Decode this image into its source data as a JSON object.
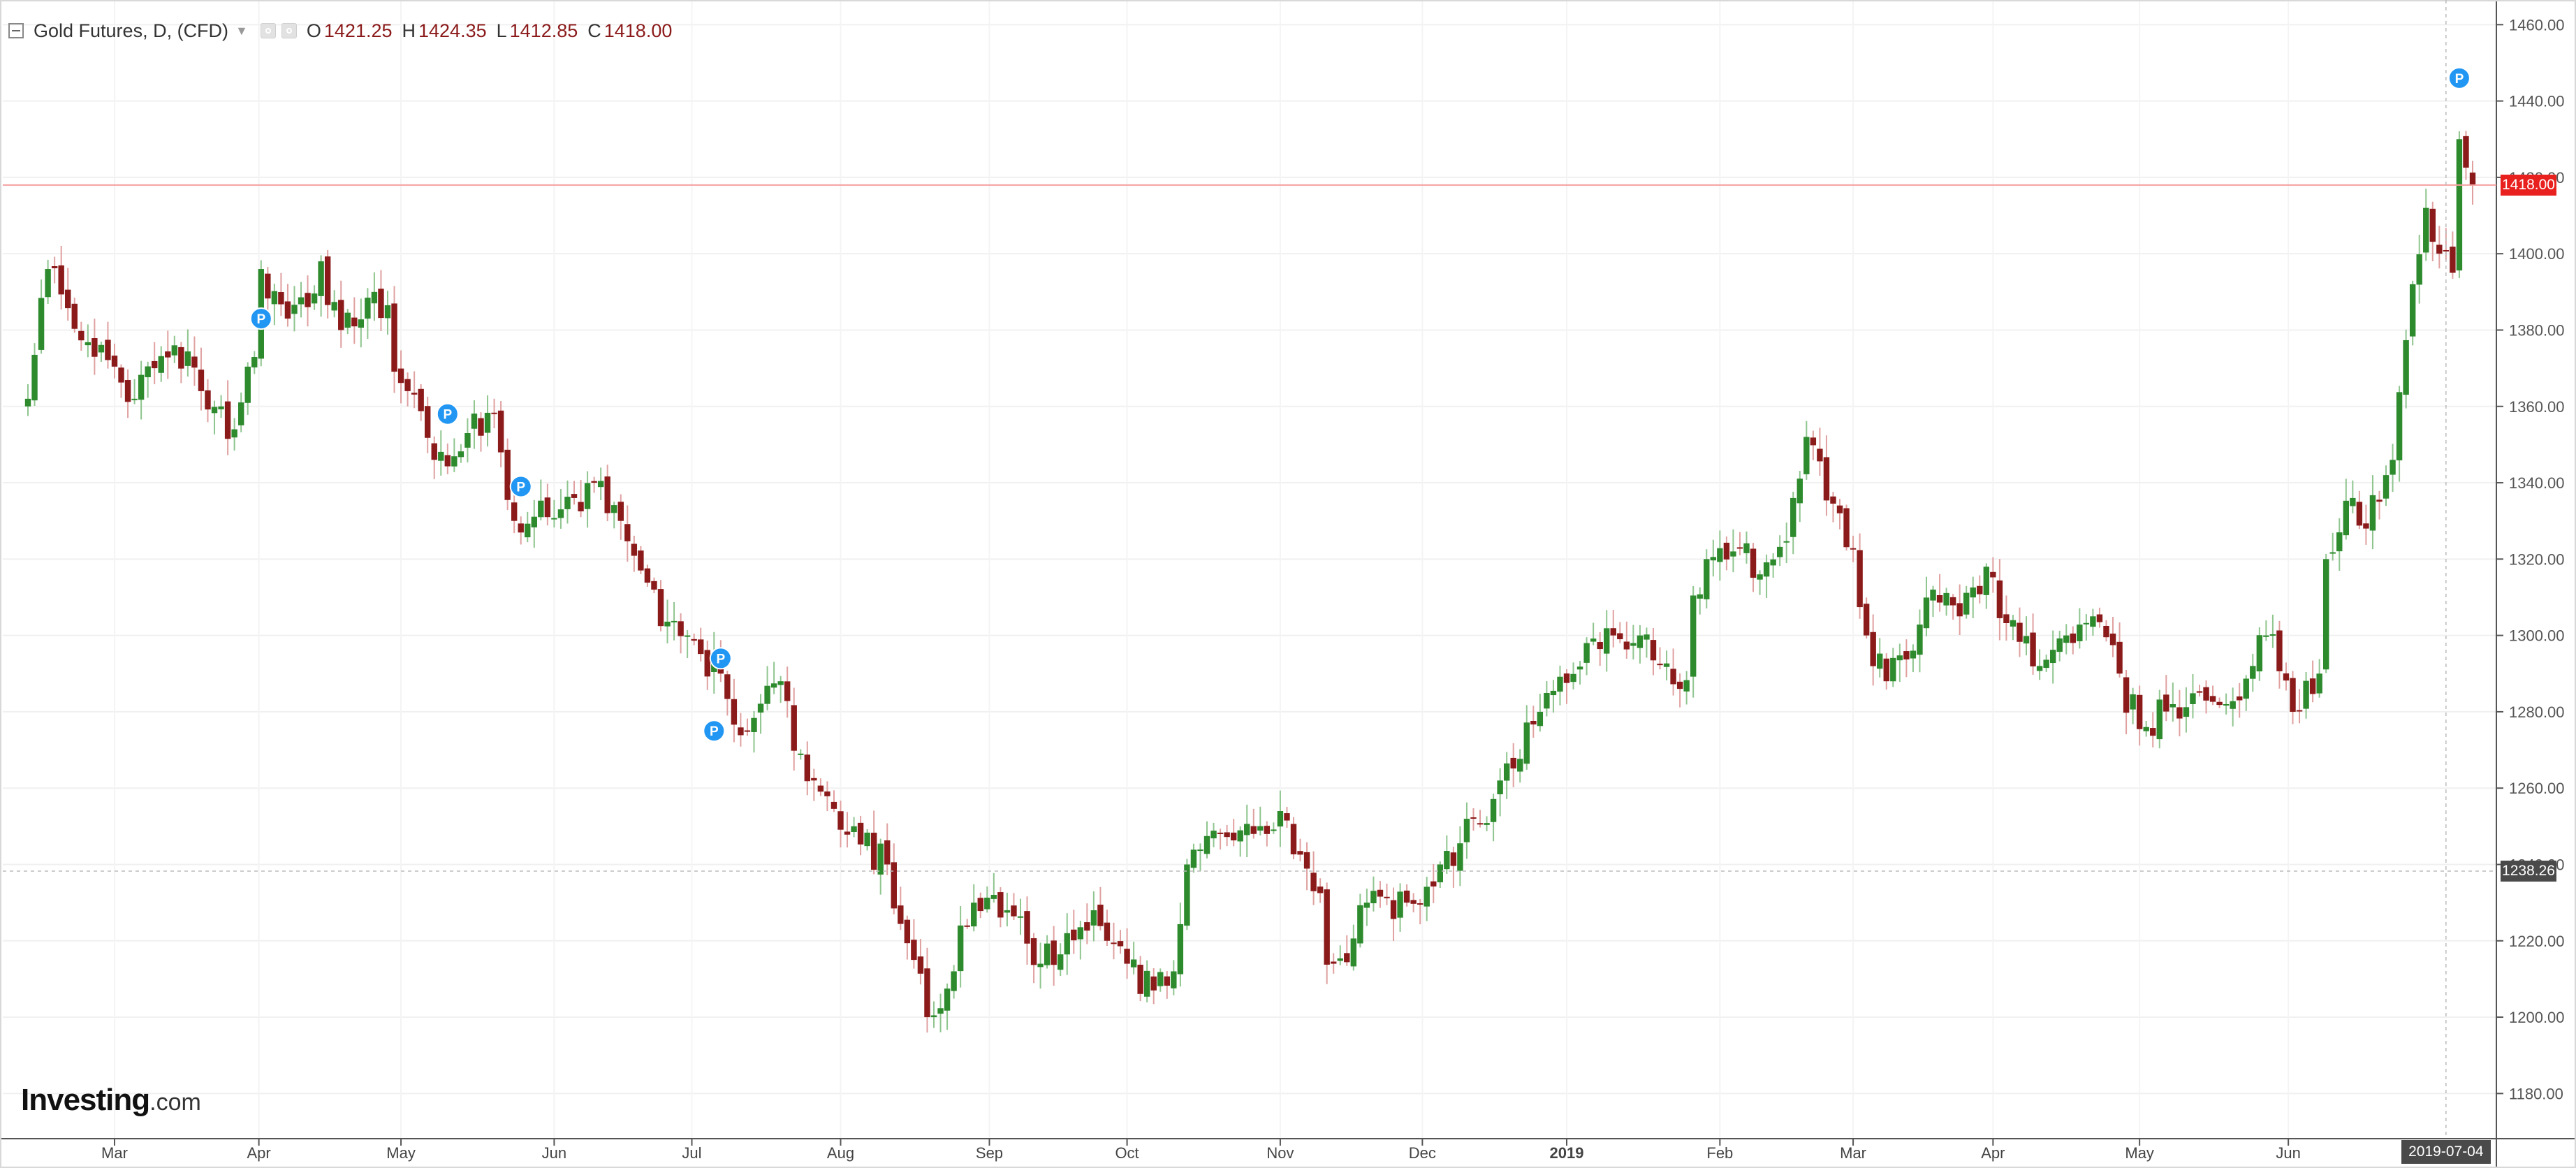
{
  "header": {
    "title": "Gold Futures, D, (CFD)",
    "ohlc": {
      "o_label": "O",
      "o_value": "1421.25",
      "h_label": "H",
      "h_value": "1424.35",
      "l_label": "L",
      "l_value": "1412.85",
      "c_label": "C",
      "c_value": "1418.00"
    }
  },
  "branding": {
    "logo_main": "Investing",
    "logo_suffix": ".com"
  },
  "current_price_label": "1418.00",
  "crosshair_price_label": "1238.26",
  "crosshair_date_label": "2019-07-04",
  "colors": {
    "up": "#2d8a2d",
    "down": "#8b1a1a",
    "marker": "#2196f3",
    "price_tag": "#e8201e",
    "crosshair_tag": "#4a4a4a",
    "price_line": "#f5a0a0"
  },
  "icons": [
    "collapse-icon",
    "dropdown-icon",
    "settings-icon",
    "eye-icon",
    "pivot-marker-icon"
  ],
  "chart_data": {
    "type": "candlestick",
    "title": "Gold Futures, D, (CFD)",
    "y_axis": {
      "range": [
        1170,
        1465
      ],
      "ticks": [
        1180,
        1200,
        1220,
        1240,
        1260,
        1280,
        1300,
        1320,
        1340,
        1360,
        1380,
        1400,
        1420,
        1440,
        1460
      ],
      "position": "right"
    },
    "x_axis": {
      "ticks": [
        {
          "label": "Mar",
          "date": "2018-03-01"
        },
        {
          "label": "Apr",
          "date": "2018-04-01"
        },
        {
          "label": "May",
          "date": "2018-05-01"
        },
        {
          "label": "Jun",
          "date": "2018-06-01"
        },
        {
          "label": "Jul",
          "date": "2018-07-01"
        },
        {
          "label": "Aug",
          "date": "2018-08-01"
        },
        {
          "label": "Sep",
          "date": "2018-09-01"
        },
        {
          "label": "Oct",
          "date": "2018-10-01"
        },
        {
          "label": "Nov",
          "date": "2018-11-01"
        },
        {
          "label": "Dec",
          "date": "2018-12-01"
        },
        {
          "label": "2019",
          "date": "2019-01-01"
        },
        {
          "label": "Feb",
          "date": "2019-02-01"
        },
        {
          "label": "Mar",
          "date": "2019-03-01"
        },
        {
          "label": "Apr",
          "date": "2019-04-01"
        },
        {
          "label": "May",
          "date": "2019-05-01"
        },
        {
          "label": "Jun",
          "date": "2019-06-01"
        }
      ]
    },
    "grid": true,
    "horizontal_line": 1418.0,
    "crosshair": {
      "price": 1238.26,
      "date": "2019-07-04"
    },
    "anchors": [
      {
        "date": "2018-02-12",
        "close": 1362
      },
      {
        "date": "2018-02-15",
        "close": 1396
      },
      {
        "date": "2018-02-26",
        "close": 1373
      },
      {
        "date": "2018-03-06",
        "close": 1362
      },
      {
        "date": "2018-03-09",
        "close": 1370
      },
      {
        "date": "2018-03-14",
        "close": 1376
      },
      {
        "date": "2018-03-20",
        "close": 1364
      },
      {
        "date": "2018-03-23",
        "close": 1360
      },
      {
        "date": "2018-03-27",
        "close": 1354
      },
      {
        "date": "2018-04-02",
        "close": 1396
      },
      {
        "date": "2018-04-06",
        "close": 1383
      },
      {
        "date": "2018-04-11",
        "close": 1386
      },
      {
        "date": "2018-04-13",
        "close": 1398
      },
      {
        "date": "2018-04-18",
        "close": 1380
      },
      {
        "date": "2018-04-25",
        "close": 1390
      },
      {
        "date": "2018-05-02",
        "close": 1364
      },
      {
        "date": "2018-05-08",
        "close": 1346
      },
      {
        "date": "2018-05-15",
        "close": 1353
      },
      {
        "date": "2018-05-21",
        "close": 1358
      },
      {
        "date": "2018-05-24",
        "close": 1330
      },
      {
        "date": "2018-05-31",
        "close": 1331
      },
      {
        "date": "2018-06-06",
        "close": 1336
      },
      {
        "date": "2018-06-11",
        "close": 1340
      },
      {
        "date": "2018-06-15",
        "close": 1330
      },
      {
        "date": "2018-06-22",
        "close": 1312
      },
      {
        "date": "2018-06-29",
        "close": 1300
      },
      {
        "date": "2018-07-06",
        "close": 1290
      },
      {
        "date": "2018-07-12",
        "close": 1275
      },
      {
        "date": "2018-07-19",
        "close": 1288
      },
      {
        "date": "2018-07-26",
        "close": 1262
      },
      {
        "date": "2018-08-03",
        "close": 1250
      },
      {
        "date": "2018-08-10",
        "close": 1240
      },
      {
        "date": "2018-08-16",
        "close": 1215
      },
      {
        "date": "2018-08-20",
        "close": 1200
      },
      {
        "date": "2018-08-24",
        "close": 1212
      },
      {
        "date": "2018-08-29",
        "close": 1230
      },
      {
        "date": "2018-09-05",
        "close": 1228
      },
      {
        "date": "2018-09-12",
        "close": 1214
      },
      {
        "date": "2018-09-18",
        "close": 1222
      },
      {
        "date": "2018-09-24",
        "close": 1228
      },
      {
        "date": "2018-10-01",
        "close": 1214
      },
      {
        "date": "2018-10-05",
        "close": 1207
      },
      {
        "date": "2018-10-10",
        "close": 1212
      },
      {
        "date": "2018-10-12",
        "close": 1240
      },
      {
        "date": "2018-10-19",
        "close": 1248
      },
      {
        "date": "2018-10-26",
        "close": 1248
      },
      {
        "date": "2018-11-01",
        "close": 1254
      },
      {
        "date": "2018-11-08",
        "close": 1233
      },
      {
        "date": "2018-11-13",
        "close": 1214
      },
      {
        "date": "2018-11-20",
        "close": 1230
      },
      {
        "date": "2018-11-28",
        "close": 1230
      },
      {
        "date": "2018-12-05",
        "close": 1240
      },
      {
        "date": "2018-12-12",
        "close": 1252
      },
      {
        "date": "2018-12-18",
        "close": 1262
      },
      {
        "date": "2018-12-26",
        "close": 1280
      },
      {
        "date": "2019-01-04",
        "close": 1298
      },
      {
        "date": "2019-01-10",
        "close": 1300
      },
      {
        "date": "2019-01-16",
        "close": 1300
      },
      {
        "date": "2019-01-24",
        "close": 1286
      },
      {
        "date": "2019-01-30",
        "close": 1320
      },
      {
        "date": "2019-02-05",
        "close": 1322
      },
      {
        "date": "2019-02-11",
        "close": 1316
      },
      {
        "date": "2019-02-18",
        "close": 1336
      },
      {
        "date": "2019-02-20",
        "close": 1352
      },
      {
        "date": "2019-02-27",
        "close": 1332
      },
      {
        "date": "2019-03-05",
        "close": 1300
      },
      {
        "date": "2019-03-08",
        "close": 1288
      },
      {
        "date": "2019-03-14",
        "close": 1296
      },
      {
        "date": "2019-03-19",
        "close": 1312
      },
      {
        "date": "2019-03-25",
        "close": 1305
      },
      {
        "date": "2019-03-29",
        "close": 1318
      },
      {
        "date": "2019-04-04",
        "close": 1304
      },
      {
        "date": "2019-04-10",
        "close": 1292
      },
      {
        "date": "2019-04-16",
        "close": 1300
      },
      {
        "date": "2019-04-22",
        "close": 1305
      },
      {
        "date": "2019-04-26",
        "close": 1290
      },
      {
        "date": "2019-05-02",
        "close": 1276
      },
      {
        "date": "2019-05-08",
        "close": 1282
      },
      {
        "date": "2019-05-14",
        "close": 1285
      },
      {
        "date": "2019-05-20",
        "close": 1282
      },
      {
        "date": "2019-05-24",
        "close": 1292
      },
      {
        "date": "2019-05-28",
        "close": 1300
      },
      {
        "date": "2019-06-03",
        "close": 1280
      },
      {
        "date": "2019-06-07",
        "close": 1290
      },
      {
        "date": "2019-06-10",
        "close": 1320
      },
      {
        "date": "2019-06-14",
        "close": 1336
      },
      {
        "date": "2019-06-18",
        "close": 1328
      },
      {
        "date": "2019-06-21",
        "close": 1342
      },
      {
        "date": "2019-06-24",
        "close": 1346
      },
      {
        "date": "2019-06-27",
        "close": 1392
      },
      {
        "date": "2019-07-01",
        "close": 1412
      },
      {
        "date": "2019-07-03",
        "close": 1400
      },
      {
        "date": "2019-07-05",
        "close": 1395
      },
      {
        "date": "2019-07-08",
        "close": 1430
      },
      {
        "date": "2019-07-10",
        "close": 1418
      }
    ],
    "pivot_markers": [
      {
        "date": "2018-04-02",
        "price": 1383,
        "label": "P"
      },
      {
        "date": "2018-05-10",
        "price": 1358,
        "label": "P"
      },
      {
        "date": "2018-05-25",
        "price": 1339,
        "label": "P"
      },
      {
        "date": "2018-07-05",
        "price": 1275,
        "label": "P"
      },
      {
        "date": "2018-07-06",
        "price": 1294,
        "label": "P"
      },
      {
        "date": "2019-07-08",
        "price": 1446,
        "label": "P"
      }
    ]
  }
}
